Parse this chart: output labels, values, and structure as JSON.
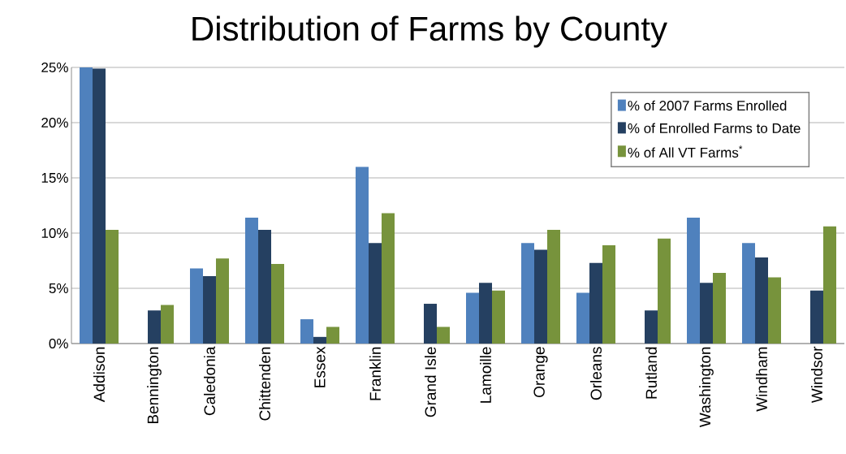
{
  "chart_data": {
    "type": "bar",
    "title": "Distribution of Farms by County",
    "categories": [
      "Addison",
      "Bennington",
      "Caledonia",
      "Chittenden",
      "Essex",
      "Franklin",
      "Grand Isle",
      "Lamoille",
      "Orange",
      "Orleans",
      "Rutland",
      "Washington",
      "Windham",
      "Windsor"
    ],
    "series": [
      {
        "name": "% of 2007 Farms Enrolled",
        "color": "#4f81bd",
        "values": [
          25.0,
          null,
          6.8,
          11.4,
          2.2,
          16.0,
          null,
          4.6,
          9.1,
          4.6,
          null,
          11.4,
          9.1,
          null
        ]
      },
      {
        "name": "% of Enrolled Farms to Date",
        "color": "#254061",
        "values": [
          24.9,
          3.0,
          6.1,
          10.3,
          0.6,
          9.1,
          3.6,
          5.5,
          8.5,
          7.3,
          3.0,
          5.5,
          7.8,
          4.8
        ]
      },
      {
        "name": "% of All VT Farms$^{*}$",
        "color": "#77933c",
        "values": [
          10.3,
          3.5,
          7.7,
          7.2,
          1.5,
          11.8,
          1.5,
          4.8,
          10.3,
          8.9,
          9.5,
          6.4,
          6.0,
          10.6
        ]
      }
    ],
    "ylim": [
      0,
      25
    ],
    "yticks": [
      {
        "value": 0,
        "label": "0%"
      },
      {
        "value": 5,
        "label": "5%"
      },
      {
        "value": 10,
        "label": "10%"
      },
      {
        "value": 15,
        "label": "15%"
      },
      {
        "value": 20,
        "label": "20%"
      },
      {
        "value": 25,
        "label": "25%"
      }
    ],
    "grid": "y",
    "legend": "top right"
  }
}
